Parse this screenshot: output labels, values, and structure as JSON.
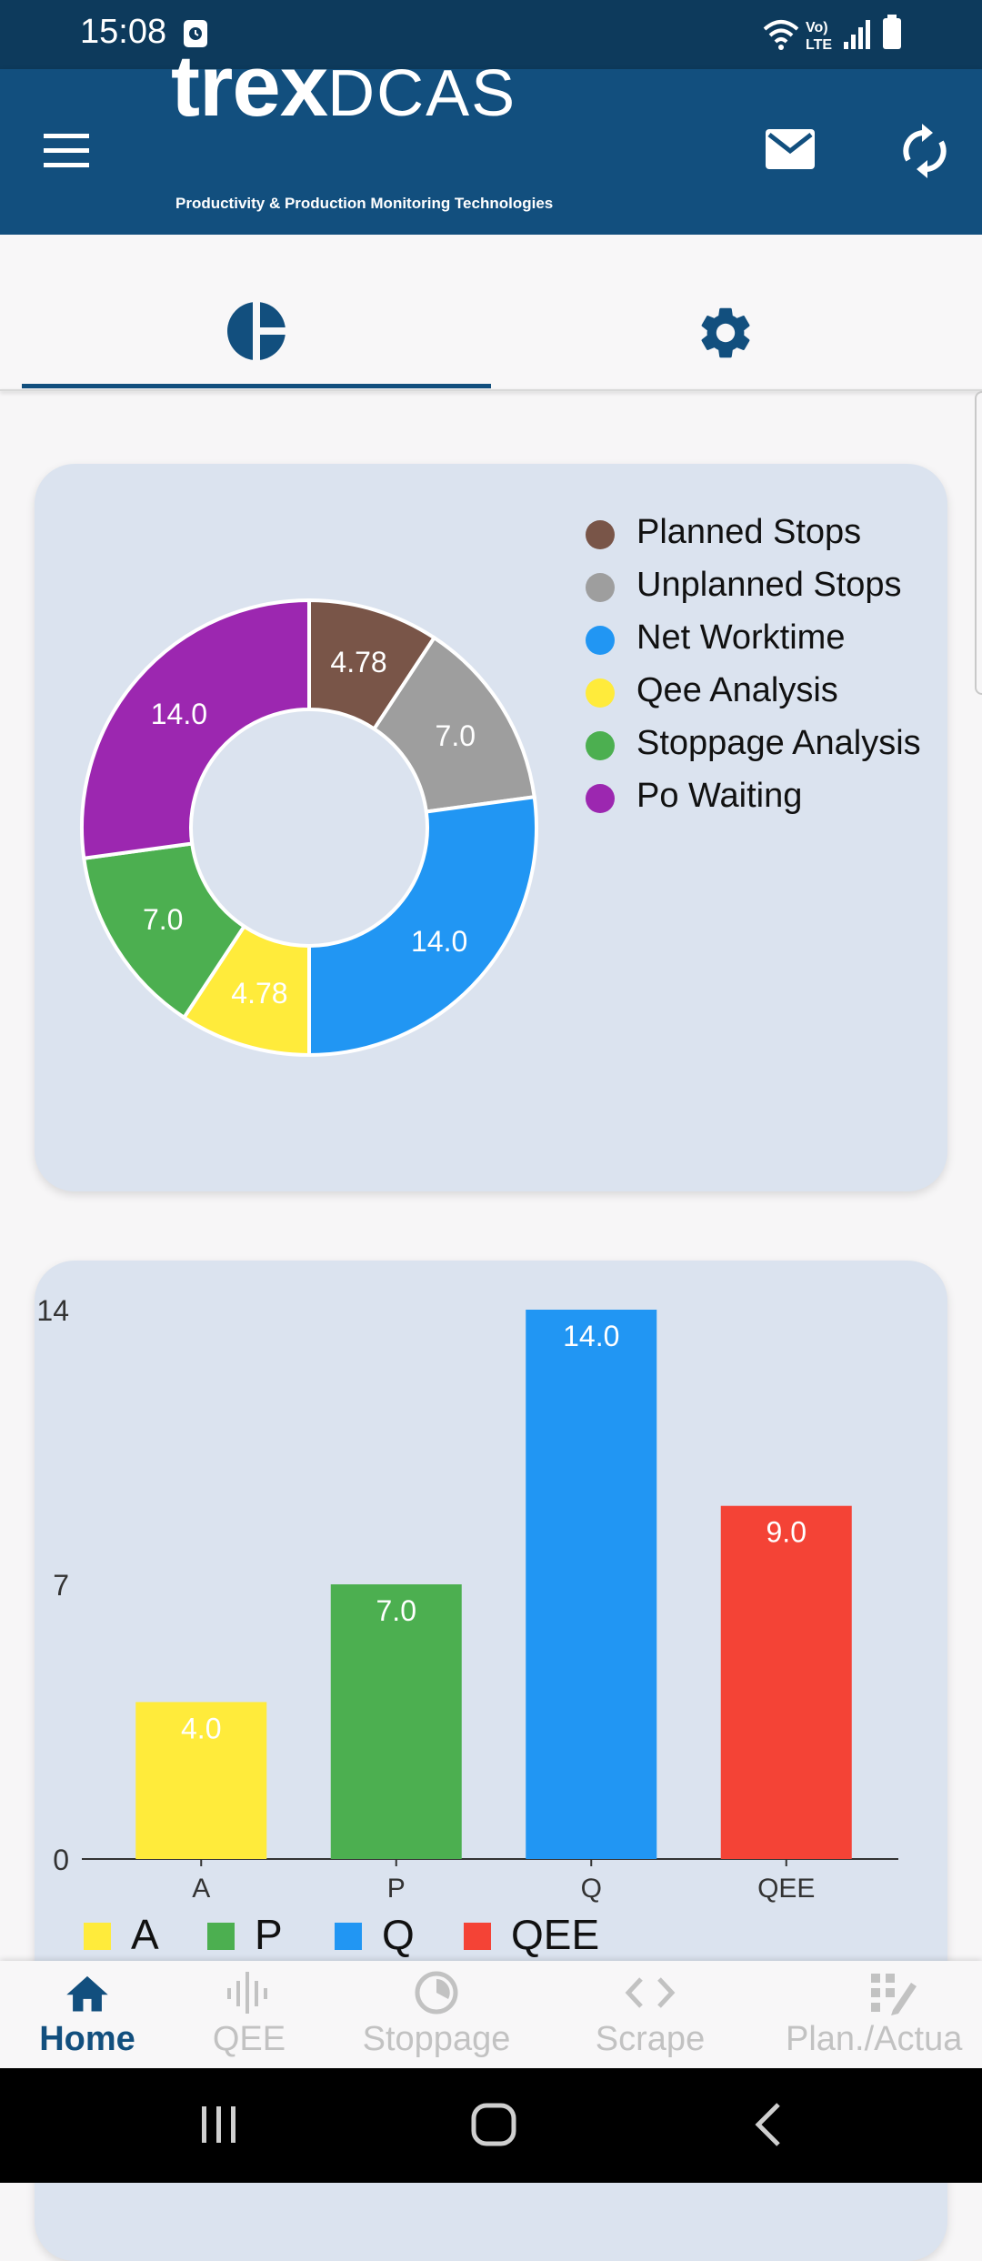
{
  "status_bar": {
    "time": "15:08"
  },
  "app_bar": {
    "brand_lower": "trex",
    "brand_upper": "DCAS",
    "tagline": "Productivity & Production Monitoring Technologies"
  },
  "tabs": [
    {
      "icon": "pie-chart-icon",
      "active": true
    },
    {
      "icon": "gear-icon",
      "active": false
    }
  ],
  "colors": {
    "primary": "#124f7e",
    "card_bg": "#dbe3ef",
    "planned_stops": "#795548",
    "unplanned_stops": "#9e9e9e",
    "net_worktime": "#2196f3",
    "qee_analysis": "#ffeb3b",
    "stoppage_analysis": "#4caf50",
    "po_waiting": "#9c27b0",
    "a": "#ffeb3b",
    "p": "#4caf50",
    "q": "#2196f3",
    "qee": "#f44336"
  },
  "chart_data": [
    {
      "type": "pie",
      "donut": true,
      "legend_position": "top-right",
      "slices": [
        {
          "label": "Planned Stops",
          "value": 4.78,
          "display": "4.78",
          "color": "#795548"
        },
        {
          "label": "Unplanned Stops",
          "value": 7.0,
          "display": "7.0",
          "color": "#9e9e9e"
        },
        {
          "label": "Net Worktime",
          "value": 14.0,
          "display": "14.0",
          "color": "#2196f3"
        },
        {
          "label": "Qee Analysis",
          "value": 4.78,
          "display": "4.78",
          "color": "#ffeb3b"
        },
        {
          "label": "Stoppage Analysis",
          "value": 7.0,
          "display": "7.0",
          "color": "#4caf50"
        },
        {
          "label": "Po Waiting",
          "value": 14.0,
          "display": "14.0",
          "color": "#9c27b0"
        }
      ]
    },
    {
      "type": "bar",
      "categories": [
        "A",
        "P",
        "Q",
        "QEE"
      ],
      "values": [
        4.0,
        7.0,
        14.0,
        9.0
      ],
      "value_labels": [
        "4.0",
        "7.0",
        "14.0",
        "9.0"
      ],
      "colors": [
        "#ffeb3b",
        "#4caf50",
        "#2196f3",
        "#f44336"
      ],
      "ylim": [
        0,
        14
      ],
      "yticks": [
        "0",
        "7",
        "14"
      ],
      "legend_position": "bottom",
      "legend": [
        "A",
        "P",
        "Q",
        "QEE"
      ]
    }
  ],
  "bottom_nav": [
    {
      "label": "Home",
      "icon": "home-icon",
      "active": true
    },
    {
      "label": "QEE",
      "icon": "waveform-icon",
      "active": false
    },
    {
      "label": "Stoppage",
      "icon": "clock-icon",
      "active": false
    },
    {
      "label": "Scrape",
      "icon": "code-icon",
      "active": false
    },
    {
      "label": "Plan./Actua",
      "icon": "grid-edit-icon",
      "active": false
    }
  ]
}
